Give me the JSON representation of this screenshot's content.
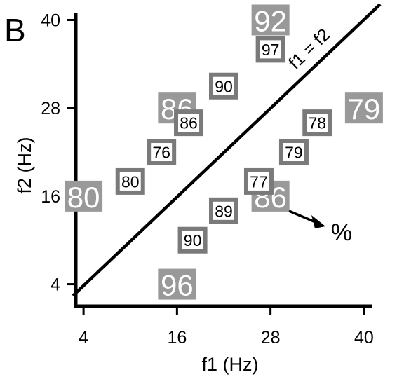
{
  "panel_label": "B",
  "chart_data": {
    "type": "scatter",
    "xlabel": "f1 (Hz)",
    "ylabel": "f2 (Hz)",
    "xlim": [
      3,
      41
    ],
    "ylim": [
      1,
      41
    ],
    "xticks": [
      4,
      16,
      28,
      40
    ],
    "yticks": [
      4,
      16,
      28,
      40
    ],
    "grid": false,
    "identity_line_label": "f1 = f2",
    "legend_marker_label": "%",
    "large_points": [
      {
        "x": 28,
        "y": 40,
        "label": "92"
      },
      {
        "x": 16,
        "y": 28,
        "label": "86"
      },
      {
        "x": 40,
        "y": 28,
        "label": "79"
      },
      {
        "x": 4,
        "y": 16,
        "label": "80"
      },
      {
        "x": 28,
        "y": 16,
        "label": "86"
      },
      {
        "x": 16,
        "y": 4,
        "label": "96"
      }
    ],
    "small_points": [
      {
        "x": 28,
        "y": 36,
        "label": "97"
      },
      {
        "x": 22,
        "y": 31,
        "label": "90"
      },
      {
        "x": 17.5,
        "y": 26,
        "label": "86"
      },
      {
        "x": 14,
        "y": 22,
        "label": "76"
      },
      {
        "x": 10,
        "y": 18,
        "label": "80"
      },
      {
        "x": 34,
        "y": 26,
        "label": "78"
      },
      {
        "x": 31,
        "y": 22,
        "label": "79"
      },
      {
        "x": 26.5,
        "y": 18,
        "label": "77"
      },
      {
        "x": 22,
        "y": 14,
        "label": "89"
      },
      {
        "x": 18,
        "y": 10,
        "label": "90"
      }
    ],
    "colors": {
      "large_box": "#999999",
      "small_box": "#7a7a7a",
      "box_text": "#ffffff",
      "small_text": "#000000",
      "axis": "#000000"
    }
  }
}
